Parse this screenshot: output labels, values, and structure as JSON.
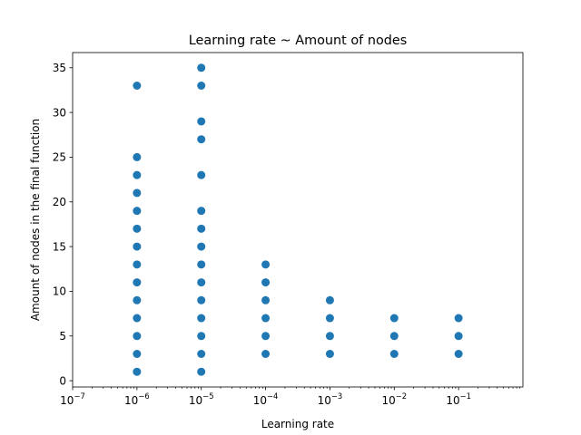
{
  "chart_data": {
    "type": "scatter",
    "title": "Learning rate ~ Amount of nodes",
    "xlabel": "Learning rate",
    "ylabel": "Amount of nodes in the final function",
    "xscale": "log",
    "xlim": [
      1e-07,
      1
    ],
    "ylim": [
      -0.7,
      36.7
    ],
    "xticks": [
      {
        "value": 1e-07,
        "base": "10",
        "exp": "−7"
      },
      {
        "value": 1e-06,
        "base": "10",
        "exp": "−6"
      },
      {
        "value": 1e-05,
        "base": "10",
        "exp": "−5"
      },
      {
        "value": 0.0001,
        "base": "10",
        "exp": "−4"
      },
      {
        "value": 0.001,
        "base": "10",
        "exp": "−3"
      },
      {
        "value": 0.01,
        "base": "10",
        "exp": "−2"
      },
      {
        "value": 0.1,
        "base": "10",
        "exp": "−1"
      }
    ],
    "yticks": [
      0,
      5,
      10,
      15,
      20,
      25,
      30,
      35
    ],
    "grid": false,
    "marker_color": "#1f77b4",
    "series": [
      {
        "points": [
          {
            "x": 1e-06,
            "y": 1
          },
          {
            "x": 1e-06,
            "y": 3
          },
          {
            "x": 1e-06,
            "y": 5
          },
          {
            "x": 1e-06,
            "y": 7
          },
          {
            "x": 1e-06,
            "y": 9
          },
          {
            "x": 1e-06,
            "y": 11
          },
          {
            "x": 1e-06,
            "y": 13
          },
          {
            "x": 1e-06,
            "y": 15
          },
          {
            "x": 1e-06,
            "y": 17
          },
          {
            "x": 1e-06,
            "y": 19
          },
          {
            "x": 1e-06,
            "y": 21
          },
          {
            "x": 1e-06,
            "y": 23
          },
          {
            "x": 1e-06,
            "y": 25
          },
          {
            "x": 1e-06,
            "y": 33
          },
          {
            "x": 1e-05,
            "y": 1
          },
          {
            "x": 1e-05,
            "y": 3
          },
          {
            "x": 1e-05,
            "y": 5
          },
          {
            "x": 1e-05,
            "y": 7
          },
          {
            "x": 1e-05,
            "y": 9
          },
          {
            "x": 1e-05,
            "y": 11
          },
          {
            "x": 1e-05,
            "y": 13
          },
          {
            "x": 1e-05,
            "y": 15
          },
          {
            "x": 1e-05,
            "y": 17
          },
          {
            "x": 1e-05,
            "y": 19
          },
          {
            "x": 1e-05,
            "y": 23
          },
          {
            "x": 1e-05,
            "y": 27
          },
          {
            "x": 1e-05,
            "y": 29
          },
          {
            "x": 1e-05,
            "y": 33
          },
          {
            "x": 1e-05,
            "y": 35
          },
          {
            "x": 0.0001,
            "y": 3
          },
          {
            "x": 0.0001,
            "y": 5
          },
          {
            "x": 0.0001,
            "y": 7
          },
          {
            "x": 0.0001,
            "y": 9
          },
          {
            "x": 0.0001,
            "y": 11
          },
          {
            "x": 0.0001,
            "y": 13
          },
          {
            "x": 0.001,
            "y": 3
          },
          {
            "x": 0.001,
            "y": 5
          },
          {
            "x": 0.001,
            "y": 7
          },
          {
            "x": 0.001,
            "y": 9
          },
          {
            "x": 0.01,
            "y": 3
          },
          {
            "x": 0.01,
            "y": 5
          },
          {
            "x": 0.01,
            "y": 7
          },
          {
            "x": 0.1,
            "y": 3
          },
          {
            "x": 0.1,
            "y": 5
          },
          {
            "x": 0.1,
            "y": 7
          }
        ]
      }
    ]
  }
}
